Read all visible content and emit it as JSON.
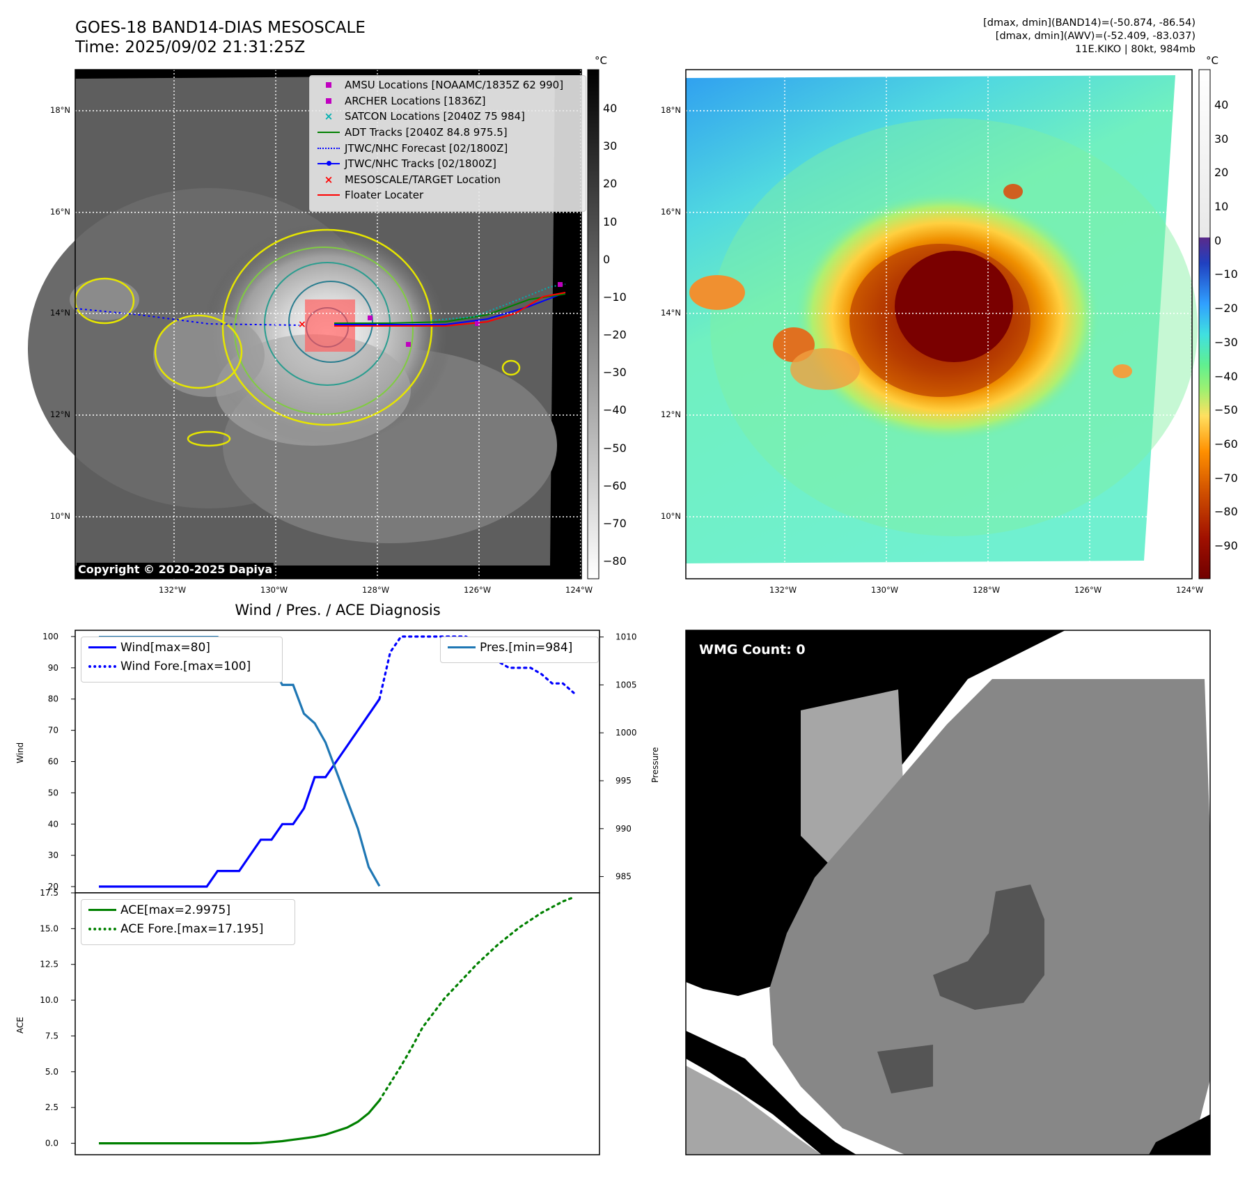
{
  "header": {
    "title_line1": "GOES-18 BAND14-DIAS MESOSCALE",
    "title_line2": "Time: 2025/09/02 21:31:25Z",
    "info_line1": "[dmax, dmin](BAND14)=(-50.874, -86.54)",
    "info_line2": "[dmax, dmin](AWV)=(-52.409, -83.037)",
    "info_line3": "11E.KIKO | 80kt, 984mb"
  },
  "maps": {
    "lat_labels": [
      "18°N",
      "16°N",
      "14°N",
      "12°N",
      "10°N"
    ],
    "lon_labels": [
      "132°W",
      "130°W",
      "128°W",
      "126°W",
      "124°W"
    ],
    "unit": "°C",
    "left_colorbar_ticks": [
      "40",
      "30",
      "20",
      "10",
      "0",
      "−10",
      "−20",
      "−30",
      "−40",
      "−50",
      "−60",
      "−70",
      "−80"
    ],
    "right_colorbar_ticks": [
      "40",
      "30",
      "20",
      "10",
      "0",
      "−10",
      "−20",
      "−30",
      "−40",
      "−50",
      "−60",
      "−70",
      "−80",
      "−90"
    ],
    "copyright": "Copyright © 2020-2025 Dapiya",
    "legend": [
      {
        "label": "AMSU Locations [NOAAMC/1835Z 62 990]",
        "symbol": "square",
        "color": "#c000c0"
      },
      {
        "label": "ARCHER Locations [1836Z]",
        "symbol": "square",
        "color": "#c000c0"
      },
      {
        "label": "SATCON Locations [2040Z 75 984]",
        "symbol": "x",
        "color": "#00b0b0"
      },
      {
        "label": "ADT Tracks [2040Z 84.8 975.5]",
        "symbol": "line",
        "color": "#008000"
      },
      {
        "label": "JTWC/NHC Forecast [02/1800Z]",
        "symbol": "dotted",
        "color": "#0000ff"
      },
      {
        "label": "JTWC/NHC Tracks [02/1800Z]",
        "symbol": "line-dot",
        "color": "#0000ff"
      },
      {
        "label": "MESOSCALE/TARGET Location",
        "symbol": "x",
        "color": "#ff0000"
      },
      {
        "label": "Floater Locater",
        "symbol": "line",
        "color": "#ff0000"
      }
    ],
    "wmg_count": "WMG Count: 0"
  },
  "chart_data": [
    {
      "type": "line",
      "title": "Wind / Pres. / ACE Diagnosis",
      "ylabel": "Wind",
      "ylabel_right": "Pressure",
      "ylim": [
        18,
        102
      ],
      "ylim_right": [
        983.3,
        1010.7
      ],
      "yticks": [
        100,
        90,
        80,
        70,
        60,
        50,
        40,
        30,
        20
      ],
      "yticks_right": [
        1010,
        1005,
        1000,
        995,
        990,
        985
      ],
      "x": [
        0,
        1,
        2,
        3,
        4,
        5,
        6,
        7,
        8,
        9,
        10,
        11,
        12,
        13,
        14,
        15,
        16,
        17,
        18,
        19,
        20,
        21,
        22,
        23,
        24,
        25,
        26,
        27,
        28,
        29,
        30,
        31,
        32,
        33,
        34,
        35,
        36,
        37,
        38,
        39,
        40,
        41,
        42,
        43,
        44
      ],
      "series": [
        {
          "name": "Wind[max=80]",
          "style": "solid",
          "color": "#0000ff",
          "x": [
            0,
            1,
            2,
            3,
            4,
            5,
            6,
            7,
            8,
            9,
            10,
            11,
            12,
            13,
            14,
            15,
            16,
            17,
            18,
            19,
            20,
            21,
            22,
            23,
            24,
            25,
            26
          ],
          "values": [
            20,
            20,
            20,
            20,
            20,
            20,
            20,
            20,
            20,
            20,
            20,
            25,
            25,
            25,
            30,
            35,
            35,
            40,
            40,
            45,
            55,
            55,
            60,
            65,
            70,
            75,
            80
          ]
        },
        {
          "name": "Wind Fore.[max=100]",
          "style": "dotted",
          "color": "#0000ff",
          "x": [
            26,
            27,
            28,
            29,
            30,
            31,
            32,
            33,
            34,
            35,
            36,
            37,
            38,
            39,
            40,
            41,
            42,
            43,
            44
          ],
          "values": [
            80,
            95,
            100,
            100,
            100,
            100,
            100,
            100,
            100,
            98,
            95,
            92,
            90,
            90,
            90,
            88,
            85,
            85,
            82
          ]
        },
        {
          "name": "Pres.[min=984]",
          "style": "solid",
          "color": "#1f77b4",
          "axis": "right",
          "x": [
            0,
            1,
            2,
            3,
            4,
            5,
            6,
            7,
            8,
            9,
            10,
            11,
            12,
            13,
            14,
            15,
            16,
            17,
            18,
            19,
            20,
            21,
            22,
            23,
            24,
            25,
            26
          ],
          "values": [
            1010,
            1010,
            1010,
            1010,
            1010,
            1010,
            1010,
            1010,
            1010,
            1010,
            1010,
            1010,
            1009,
            1009,
            1009,
            1008,
            1007,
            1005,
            1005,
            1002,
            1001,
            999,
            996,
            993,
            990,
            986,
            984
          ]
        }
      ]
    },
    {
      "type": "line",
      "ylabel": "ACE",
      "ylim": [
        -0.8,
        17.5
      ],
      "yticks": [
        17.5,
        15.0,
        12.5,
        10.0,
        7.5,
        5.0,
        2.5,
        0.0
      ],
      "series": [
        {
          "name": "ACE[max=2.9975]",
          "style": "solid",
          "color": "#008000",
          "x": [
            0,
            4,
            8,
            12,
            14,
            15,
            16,
            17,
            18,
            19,
            20,
            21,
            22,
            23,
            24,
            25,
            26
          ],
          "values": [
            0,
            0,
            0,
            0,
            0,
            0.02,
            0.08,
            0.15,
            0.25,
            0.35,
            0.45,
            0.6,
            0.85,
            1.1,
            1.5,
            2.1,
            2.9975
          ]
        },
        {
          "name": "ACE Fore.[max=17.195]",
          "style": "dotted",
          "color": "#008000",
          "x": [
            26,
            27,
            28,
            29,
            30,
            31,
            32,
            33,
            34,
            35,
            36,
            37,
            38,
            39,
            40,
            41,
            42,
            43,
            44
          ],
          "values": [
            2.9975,
            4.2,
            5.4,
            6.7,
            8.1,
            9.1,
            10.1,
            10.9,
            11.7,
            12.5,
            13.2,
            13.9,
            14.5,
            15.1,
            15.6,
            16.1,
            16.5,
            16.9,
            17.195
          ]
        }
      ]
    }
  ]
}
